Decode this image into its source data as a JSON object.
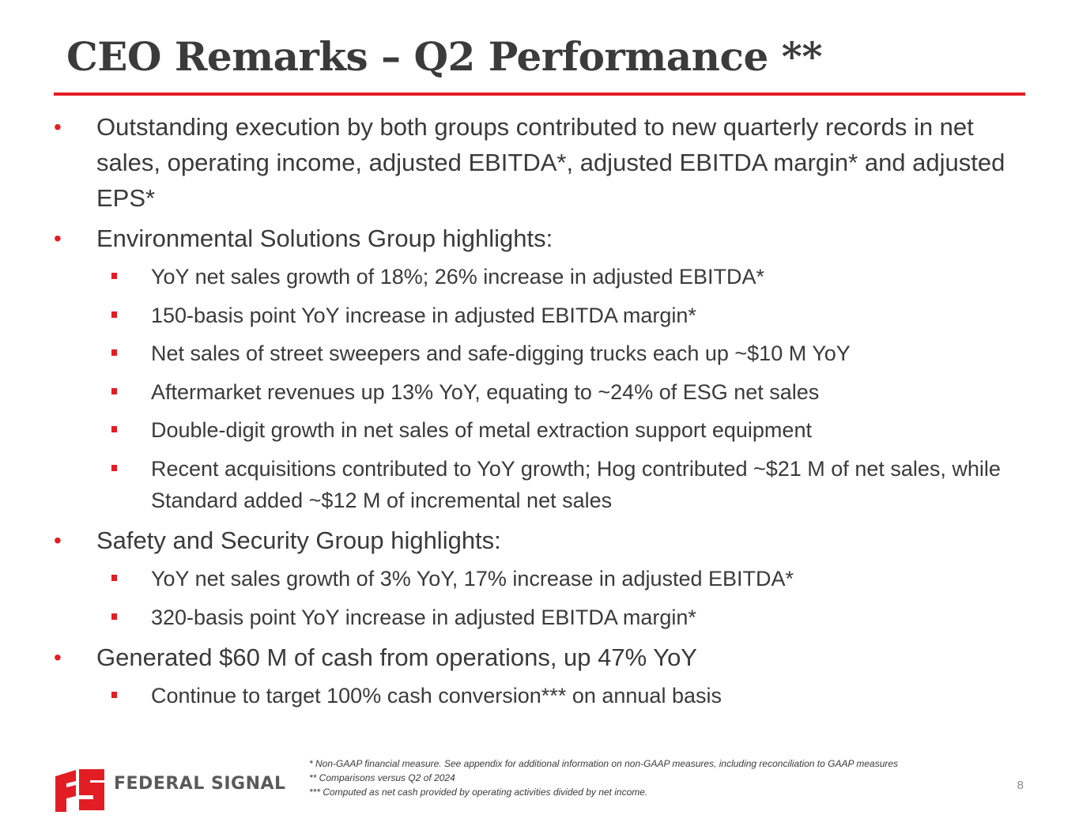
{
  "slide": {
    "title": "CEO Remarks – Q2 Performance **",
    "page_number": "8",
    "accent_color": "#e31d24"
  },
  "bullets": [
    {
      "text": "Outstanding execution by both groups contributed to new quarterly records in net sales, operating income, adjusted EBITDA*, adjusted EBITDA margin* and adjusted EPS*",
      "sub": []
    },
    {
      "text": "Environmental Solutions Group highlights:",
      "sub": [
        "YoY net sales growth of 18%; 26% increase in adjusted EBITDA*",
        "150-basis point YoY increase in adjusted EBITDA margin*",
        "Net sales of street sweepers and safe-digging trucks each up ~$10 M YoY",
        "Aftermarket revenues up 13% YoY, equating to ~24% of ESG net sales",
        "Double-digit growth in net sales of metal extraction support equipment",
        "Recent acquisitions contributed to YoY growth; Hog contributed ~$21 M of net sales, while Standard added ~$12 M of incremental net sales"
      ]
    },
    {
      "text": "Safety and Security Group highlights:",
      "sub": [
        "YoY net sales growth of 3% YoY, 17% increase in adjusted EBITDA*",
        "320-basis point YoY increase in adjusted EBITDA margin*"
      ]
    },
    {
      "text": "Generated $60 M of cash from operations, up 47% YoY",
      "sub": [
        "Continue to target 100% cash conversion*** on annual basis"
      ]
    }
  ],
  "footnotes": [
    "* Non-GAAP financial measure. See appendix for additional information on non-GAAP measures, including reconciliation to GAAP measures",
    "** Comparisons versus Q2 of 2024",
    "*** Computed as net cash provided by operating activities divided by net income."
  ],
  "logo": {
    "text": "FEDERAL SIGNAL",
    "icon": "federal-signal-logo-icon"
  }
}
